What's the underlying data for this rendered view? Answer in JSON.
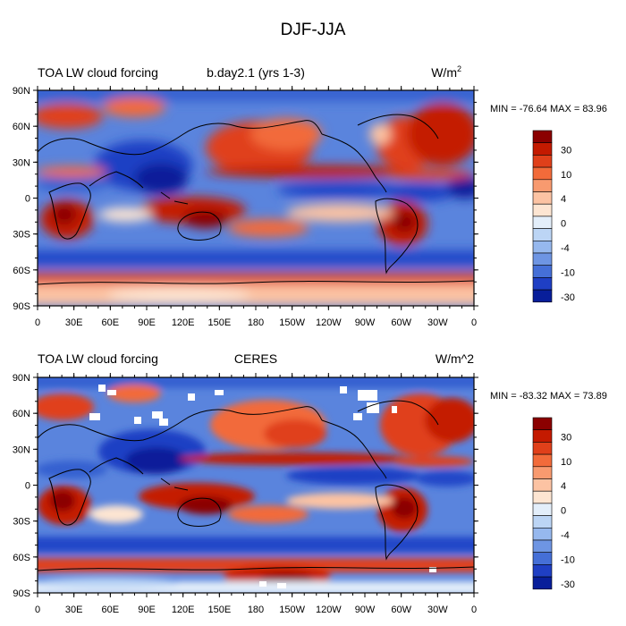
{
  "figure": {
    "title": "DJF-JJA"
  },
  "panels": [
    {
      "left_title": "TOA LW cloud forcing",
      "center_title": "b.day2.1 (yrs 1-3)",
      "units": "W/m",
      "units_sup": "2",
      "min_max": "MIN = -76.64 MAX =  83.96"
    },
    {
      "left_title": "TOA LW cloud forcing",
      "center_title": "CERES",
      "units": "W/m^2",
      "units_sup": "",
      "min_max": "MIN = -83.32 MAX =  73.89"
    }
  ],
  "axes": {
    "lat_ticks": [
      "90N",
      "60N",
      "30N",
      "0",
      "30S",
      "60S",
      "90S"
    ],
    "lon_ticks": [
      "0",
      "30E",
      "60E",
      "90E",
      "120E",
      "150E",
      "180",
      "150W",
      "120W",
      "90W",
      "60W",
      "30W",
      "0"
    ]
  },
  "colorbar": {
    "labels": [
      "30",
      "10",
      "4",
      "0",
      "-4",
      "-10",
      "-30"
    ],
    "colors": [
      "#8b0000",
      "#c41a00",
      "#e0401a",
      "#f26b3a",
      "#f89a6f",
      "#fcc3a3",
      "#fde5d2",
      "#e3eefa",
      "#bcd5f5",
      "#96b8ee",
      "#6e95e3",
      "#456fd7",
      "#1f3fc4",
      "#081e9a"
    ]
  },
  "colors": {
    "land_line": "#000000",
    "missing": "#ffffff"
  }
}
